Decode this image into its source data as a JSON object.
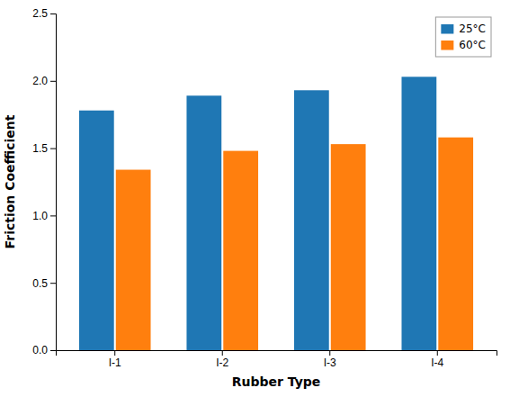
{
  "chart_data": {
    "type": "bar",
    "categories": [
      "I-1",
      "I-2",
      "I-3",
      "I-4"
    ],
    "series": [
      {
        "name": "25°C",
        "values": [
          1.78,
          1.89,
          1.93,
          2.03
        ]
      },
      {
        "name": "60°C",
        "values": [
          1.34,
          1.48,
          1.53,
          1.58
        ]
      }
    ],
    "xlabel": "Rubber Type",
    "ylabel": "Friction Coefficient",
    "ylim": [
      0,
      2.5
    ],
    "yticks": [
      {
        "value": 0,
        "label": "0.0"
      },
      0.5,
      {
        "value": 1,
        "label": "1.0"
      },
      1.5,
      {
        "value": 2,
        "label": "2.0"
      },
      2.5
    ],
    "legend": "upper right"
  }
}
